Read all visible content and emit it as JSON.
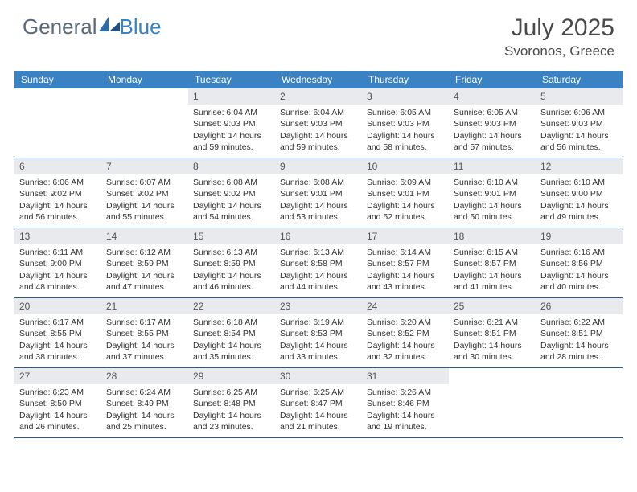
{
  "logo": {
    "text1": "General",
    "text2": "Blue"
  },
  "title": "July 2025",
  "location": "Svoronos, Greece",
  "colors": {
    "header_bg": "#3b82c4",
    "header_text": "#ffffff",
    "date_bg": "#e8eaed",
    "border": "#2a5a8a",
    "logo_gray": "#5a6a7a",
    "logo_blue": "#3b82c4",
    "text": "#333333"
  },
  "day_names": [
    "Sunday",
    "Monday",
    "Tuesday",
    "Wednesday",
    "Thursday",
    "Friday",
    "Saturday"
  ],
  "weeks": [
    [
      null,
      null,
      {
        "date": "1",
        "sunrise": "Sunrise: 6:04 AM",
        "sunset": "Sunset: 9:03 PM",
        "day1": "Daylight: 14 hours",
        "day2": "and 59 minutes."
      },
      {
        "date": "2",
        "sunrise": "Sunrise: 6:04 AM",
        "sunset": "Sunset: 9:03 PM",
        "day1": "Daylight: 14 hours",
        "day2": "and 59 minutes."
      },
      {
        "date": "3",
        "sunrise": "Sunrise: 6:05 AM",
        "sunset": "Sunset: 9:03 PM",
        "day1": "Daylight: 14 hours",
        "day2": "and 58 minutes."
      },
      {
        "date": "4",
        "sunrise": "Sunrise: 6:05 AM",
        "sunset": "Sunset: 9:03 PM",
        "day1": "Daylight: 14 hours",
        "day2": "and 57 minutes."
      },
      {
        "date": "5",
        "sunrise": "Sunrise: 6:06 AM",
        "sunset": "Sunset: 9:03 PM",
        "day1": "Daylight: 14 hours",
        "day2": "and 56 minutes."
      }
    ],
    [
      {
        "date": "6",
        "sunrise": "Sunrise: 6:06 AM",
        "sunset": "Sunset: 9:02 PM",
        "day1": "Daylight: 14 hours",
        "day2": "and 56 minutes."
      },
      {
        "date": "7",
        "sunrise": "Sunrise: 6:07 AM",
        "sunset": "Sunset: 9:02 PM",
        "day1": "Daylight: 14 hours",
        "day2": "and 55 minutes."
      },
      {
        "date": "8",
        "sunrise": "Sunrise: 6:08 AM",
        "sunset": "Sunset: 9:02 PM",
        "day1": "Daylight: 14 hours",
        "day2": "and 54 minutes."
      },
      {
        "date": "9",
        "sunrise": "Sunrise: 6:08 AM",
        "sunset": "Sunset: 9:01 PM",
        "day1": "Daylight: 14 hours",
        "day2": "and 53 minutes."
      },
      {
        "date": "10",
        "sunrise": "Sunrise: 6:09 AM",
        "sunset": "Sunset: 9:01 PM",
        "day1": "Daylight: 14 hours",
        "day2": "and 52 minutes."
      },
      {
        "date": "11",
        "sunrise": "Sunrise: 6:10 AM",
        "sunset": "Sunset: 9:01 PM",
        "day1": "Daylight: 14 hours",
        "day2": "and 50 minutes."
      },
      {
        "date": "12",
        "sunrise": "Sunrise: 6:10 AM",
        "sunset": "Sunset: 9:00 PM",
        "day1": "Daylight: 14 hours",
        "day2": "and 49 minutes."
      }
    ],
    [
      {
        "date": "13",
        "sunrise": "Sunrise: 6:11 AM",
        "sunset": "Sunset: 9:00 PM",
        "day1": "Daylight: 14 hours",
        "day2": "and 48 minutes."
      },
      {
        "date": "14",
        "sunrise": "Sunrise: 6:12 AM",
        "sunset": "Sunset: 8:59 PM",
        "day1": "Daylight: 14 hours",
        "day2": "and 47 minutes."
      },
      {
        "date": "15",
        "sunrise": "Sunrise: 6:13 AM",
        "sunset": "Sunset: 8:59 PM",
        "day1": "Daylight: 14 hours",
        "day2": "and 46 minutes."
      },
      {
        "date": "16",
        "sunrise": "Sunrise: 6:13 AM",
        "sunset": "Sunset: 8:58 PM",
        "day1": "Daylight: 14 hours",
        "day2": "and 44 minutes."
      },
      {
        "date": "17",
        "sunrise": "Sunrise: 6:14 AM",
        "sunset": "Sunset: 8:57 PM",
        "day1": "Daylight: 14 hours",
        "day2": "and 43 minutes."
      },
      {
        "date": "18",
        "sunrise": "Sunrise: 6:15 AM",
        "sunset": "Sunset: 8:57 PM",
        "day1": "Daylight: 14 hours",
        "day2": "and 41 minutes."
      },
      {
        "date": "19",
        "sunrise": "Sunrise: 6:16 AM",
        "sunset": "Sunset: 8:56 PM",
        "day1": "Daylight: 14 hours",
        "day2": "and 40 minutes."
      }
    ],
    [
      {
        "date": "20",
        "sunrise": "Sunrise: 6:17 AM",
        "sunset": "Sunset: 8:55 PM",
        "day1": "Daylight: 14 hours",
        "day2": "and 38 minutes."
      },
      {
        "date": "21",
        "sunrise": "Sunrise: 6:17 AM",
        "sunset": "Sunset: 8:55 PM",
        "day1": "Daylight: 14 hours",
        "day2": "and 37 minutes."
      },
      {
        "date": "22",
        "sunrise": "Sunrise: 6:18 AM",
        "sunset": "Sunset: 8:54 PM",
        "day1": "Daylight: 14 hours",
        "day2": "and 35 minutes."
      },
      {
        "date": "23",
        "sunrise": "Sunrise: 6:19 AM",
        "sunset": "Sunset: 8:53 PM",
        "day1": "Daylight: 14 hours",
        "day2": "and 33 minutes."
      },
      {
        "date": "24",
        "sunrise": "Sunrise: 6:20 AM",
        "sunset": "Sunset: 8:52 PM",
        "day1": "Daylight: 14 hours",
        "day2": "and 32 minutes."
      },
      {
        "date": "25",
        "sunrise": "Sunrise: 6:21 AM",
        "sunset": "Sunset: 8:51 PM",
        "day1": "Daylight: 14 hours",
        "day2": "and 30 minutes."
      },
      {
        "date": "26",
        "sunrise": "Sunrise: 6:22 AM",
        "sunset": "Sunset: 8:51 PM",
        "day1": "Daylight: 14 hours",
        "day2": "and 28 minutes."
      }
    ],
    [
      {
        "date": "27",
        "sunrise": "Sunrise: 6:23 AM",
        "sunset": "Sunset: 8:50 PM",
        "day1": "Daylight: 14 hours",
        "day2": "and 26 minutes."
      },
      {
        "date": "28",
        "sunrise": "Sunrise: 6:24 AM",
        "sunset": "Sunset: 8:49 PM",
        "day1": "Daylight: 14 hours",
        "day2": "and 25 minutes."
      },
      {
        "date": "29",
        "sunrise": "Sunrise: 6:25 AM",
        "sunset": "Sunset: 8:48 PM",
        "day1": "Daylight: 14 hours",
        "day2": "and 23 minutes."
      },
      {
        "date": "30",
        "sunrise": "Sunrise: 6:25 AM",
        "sunset": "Sunset: 8:47 PM",
        "day1": "Daylight: 14 hours",
        "day2": "and 21 minutes."
      },
      {
        "date": "31",
        "sunrise": "Sunrise: 6:26 AM",
        "sunset": "Sunset: 8:46 PM",
        "day1": "Daylight: 14 hours",
        "day2": "and 19 minutes."
      },
      null,
      null
    ]
  ]
}
